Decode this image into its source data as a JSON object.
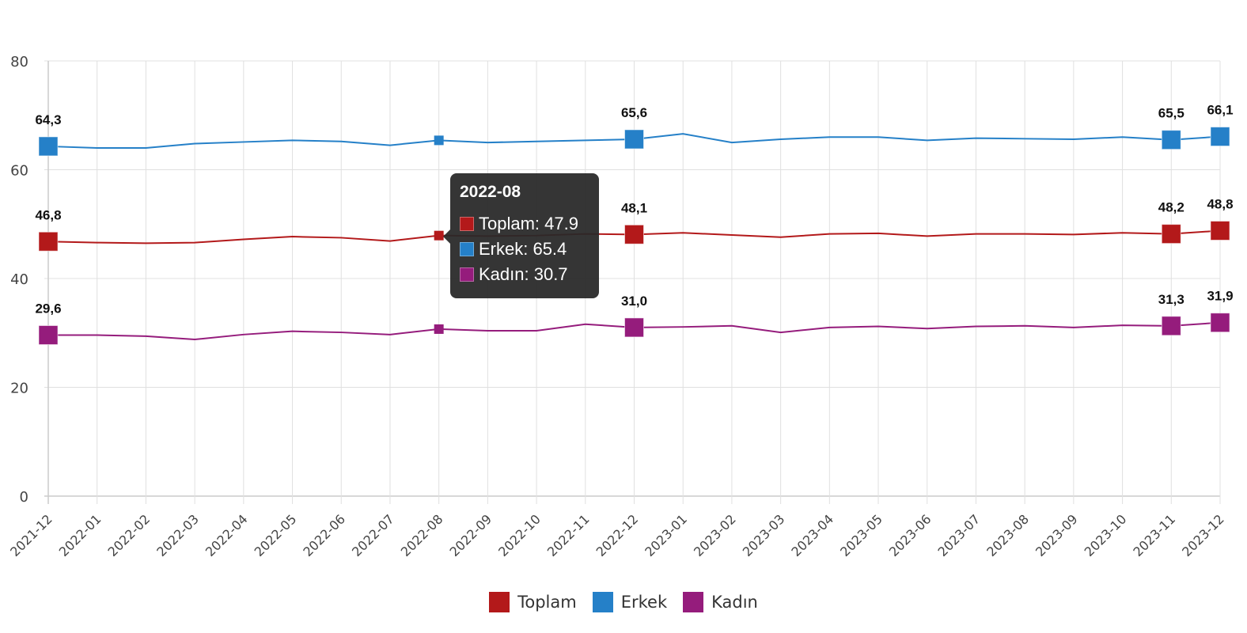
{
  "chart_data": {
    "type": "line",
    "title": "",
    "xlabel": "",
    "ylabel": "",
    "ylim": [
      0,
      80
    ],
    "yticks": [
      0,
      20,
      40,
      60,
      80
    ],
    "grid": true,
    "legend_position": "bottom",
    "categories": [
      "2021-12",
      "2022-01",
      "2022-02",
      "2022-03",
      "2022-04",
      "2022-05",
      "2022-06",
      "2022-07",
      "2022-08",
      "2022-09",
      "2022-10",
      "2022-11",
      "2022-12",
      "2023-01",
      "2023-02",
      "2023-03",
      "2023-04",
      "2023-05",
      "2023-06",
      "2023-07",
      "2023-08",
      "2023-09",
      "2023-10",
      "2023-11",
      "2023-12"
    ],
    "series": [
      {
        "name": "Toplam",
        "color": "#b3191a",
        "values": [
          46.8,
          46.6,
          46.5,
          46.6,
          47.2,
          47.7,
          47.5,
          46.9,
          47.9,
          47.8,
          47.9,
          48.2,
          48.1,
          48.4,
          48.0,
          47.6,
          48.2,
          48.3,
          47.8,
          48.2,
          48.2,
          48.1,
          48.4,
          48.2,
          48.8
        ]
      },
      {
        "name": "Erkek",
        "color": "#2580c8",
        "values": [
          64.3,
          64.0,
          64.0,
          64.8,
          65.1,
          65.4,
          65.2,
          64.5,
          65.4,
          65.0,
          65.2,
          65.4,
          65.6,
          66.6,
          65.0,
          65.6,
          66.0,
          66.0,
          65.4,
          65.8,
          65.7,
          65.6,
          66.0,
          65.5,
          66.1
        ]
      },
      {
        "name": "Kadın",
        "color": "#951c7c",
        "values": [
          29.6,
          29.6,
          29.4,
          28.8,
          29.7,
          30.3,
          30.1,
          29.7,
          30.7,
          30.4,
          30.4,
          31.6,
          31.0,
          31.1,
          31.3,
          30.1,
          31.0,
          31.2,
          30.8,
          31.2,
          31.3,
          31.0,
          31.4,
          31.3,
          31.9
        ]
      }
    ],
    "annotations": [
      {
        "index": 0,
        "labels": [
          "46,8",
          "64,3",
          "29,6"
        ]
      },
      {
        "index": 12,
        "labels": [
          "48,1",
          "65,6",
          "31,0"
        ]
      },
      {
        "index": 23,
        "labels": [
          "48,2",
          "65,5",
          "31,3"
        ]
      },
      {
        "index": 24,
        "labels": [
          "48,8",
          "66,1",
          "31,9"
        ]
      }
    ]
  },
  "tooltip": {
    "title": "2022-08",
    "rows": [
      {
        "label": "Toplam: 47.9",
        "color": "#b3191a"
      },
      {
        "label": "Erkek: 65.4",
        "color": "#2580c8"
      },
      {
        "label": "Kadın: 30.7",
        "color": "#951c7c"
      }
    ]
  },
  "legend": [
    {
      "label": "Toplam",
      "color": "#b3191a"
    },
    {
      "label": "Erkek",
      "color": "#2580c8"
    },
    {
      "label": "Kadın",
      "color": "#951c7c"
    }
  ]
}
